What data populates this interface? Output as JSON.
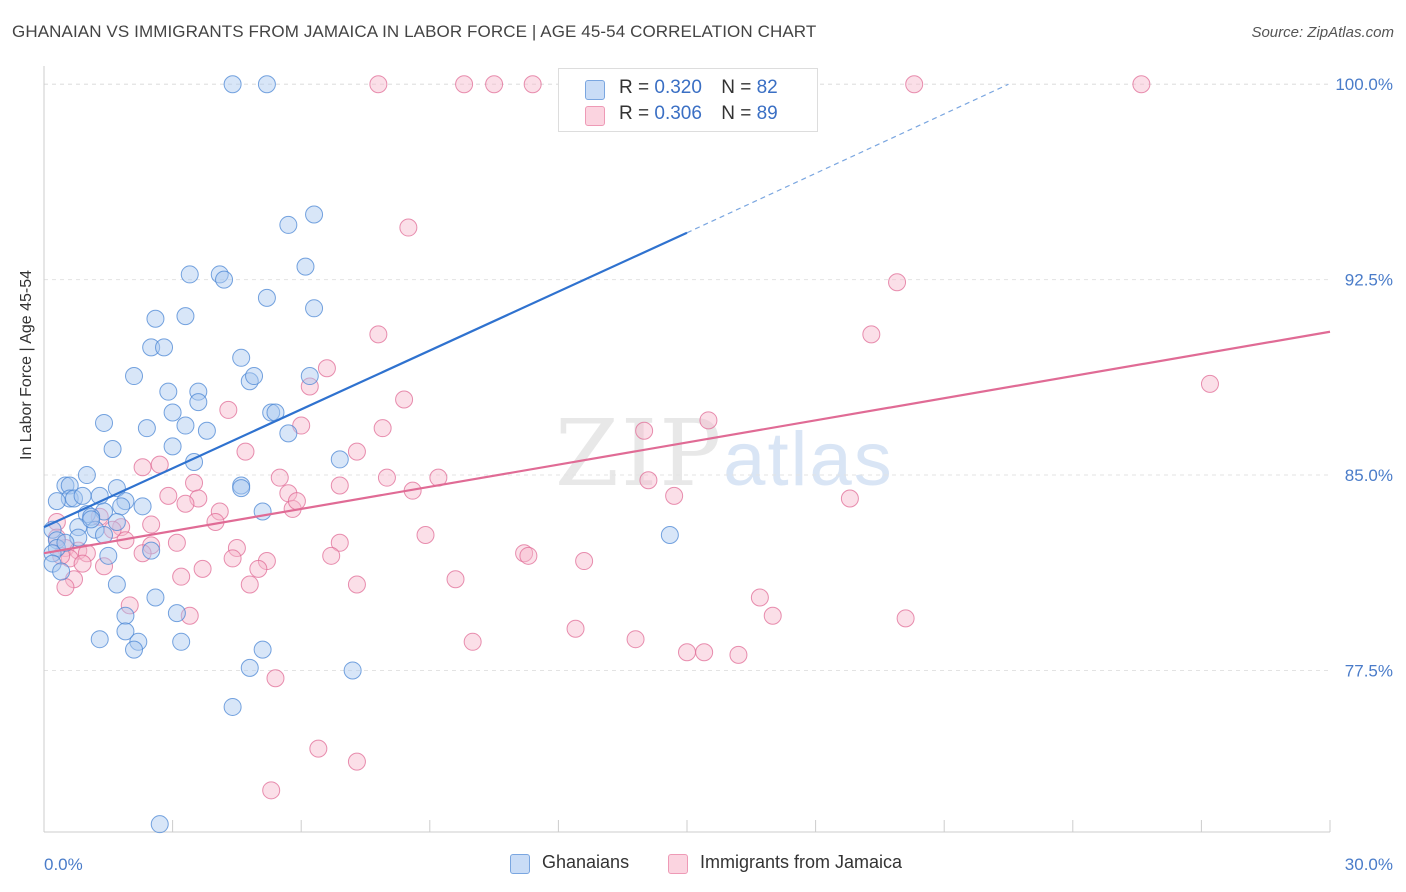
{
  "title": "GHANAIAN VS IMMIGRANTS FROM JAMAICA IN LABOR FORCE | AGE 45-54 CORRELATION CHART",
  "source": "Source: ZipAtlas.com",
  "watermark": {
    "zip": "ZIP",
    "atlas": "atlas"
  },
  "legend": {
    "rows": [
      {
        "r_label": "R = ",
        "r_value": "0.320",
        "n_label": "N = ",
        "n_value": "82",
        "color": "#a9c8f0"
      },
      {
        "r_label": "R = ",
        "r_value": "0.306",
        "n_label": "N = ",
        "n_value": "89",
        "color": "#f6b9cc"
      }
    ]
  },
  "bottom_legend": [
    {
      "label": "Ghanaians",
      "color": "#a9c8f0"
    },
    {
      "label": "Immigrants from Jamaica",
      "color": "#f6b9cc"
    }
  ],
  "chart_data": {
    "type": "scatter",
    "title": "GHANAIAN VS IMMIGRANTS FROM JAMAICA IN LABOR FORCE | AGE 45-54 CORRELATION CHART",
    "xlabel": "",
    "ylabel": "In Labor Force | Age 45-54",
    "xlim": [
      0,
      30
    ],
    "ylim": [
      71.3,
      100.7
    ],
    "x_tick_labels": [
      "0.0%",
      "30.0%"
    ],
    "y_ticks": [
      77.5,
      85.0,
      92.5,
      100.0
    ],
    "y_tick_labels": [
      "77.5%",
      "85.0%",
      "92.5%",
      "100.0%"
    ],
    "grid": true,
    "series": [
      {
        "name": "Ghanaians",
        "color": "#4a86d4",
        "fill": "#a9c8f0",
        "trend": {
          "x0": 0,
          "y0": 83.0,
          "x1": 15.0,
          "y1": 94.3,
          "dash_to_x": 22.5,
          "dash_to_y": 100.0
        },
        "points": [
          [
            4.4,
            100.0
          ],
          [
            5.2,
            100.0
          ],
          [
            6.3,
            95.0
          ],
          [
            5.7,
            94.6
          ],
          [
            6.1,
            93.0
          ],
          [
            3.4,
            92.7
          ],
          [
            4.1,
            92.7
          ],
          [
            4.2,
            92.5
          ],
          [
            5.2,
            91.8
          ],
          [
            6.3,
            91.4
          ],
          [
            3.3,
            91.1
          ],
          [
            2.6,
            91.0
          ],
          [
            2.5,
            89.9
          ],
          [
            2.8,
            89.9
          ],
          [
            4.6,
            89.5
          ],
          [
            2.1,
            88.8
          ],
          [
            4.8,
            88.6
          ],
          [
            4.9,
            88.8
          ],
          [
            6.2,
            88.8
          ],
          [
            2.9,
            88.2
          ],
          [
            3.6,
            88.2
          ],
          [
            3.6,
            87.8
          ],
          [
            3.0,
            87.4
          ],
          [
            5.3,
            87.4
          ],
          [
            5.4,
            87.4
          ],
          [
            1.4,
            87.0
          ],
          [
            3.3,
            86.9
          ],
          [
            2.4,
            86.8
          ],
          [
            3.8,
            86.7
          ],
          [
            5.7,
            86.6
          ],
          [
            3.0,
            86.1
          ],
          [
            1.6,
            86.0
          ],
          [
            3.5,
            85.5
          ],
          [
            6.9,
            85.6
          ],
          [
            1.0,
            85.0
          ],
          [
            1.7,
            84.5
          ],
          [
            4.6,
            84.6
          ],
          [
            4.6,
            84.5
          ],
          [
            0.5,
            84.6
          ],
          [
            0.6,
            84.6
          ],
          [
            1.3,
            84.2
          ],
          [
            0.6,
            84.1
          ],
          [
            0.7,
            84.1
          ],
          [
            0.3,
            84.0
          ],
          [
            1.9,
            84.0
          ],
          [
            2.3,
            83.8
          ],
          [
            1.8,
            83.8
          ],
          [
            1.4,
            83.6
          ],
          [
            5.1,
            83.6
          ],
          [
            1.0,
            83.5
          ],
          [
            1.1,
            83.4
          ],
          [
            1.7,
            83.2
          ],
          [
            1.2,
            82.9
          ],
          [
            0.8,
            83.0
          ],
          [
            0.2,
            82.9
          ],
          [
            1.4,
            82.7
          ],
          [
            0.8,
            82.6
          ],
          [
            0.3,
            82.5
          ],
          [
            2.5,
            82.1
          ],
          [
            14.6,
            82.7
          ],
          [
            0.3,
            82.2
          ],
          [
            0.2,
            82.0
          ],
          [
            1.5,
            81.9
          ],
          [
            0.2,
            81.6
          ],
          [
            0.4,
            81.3
          ],
          [
            1.7,
            80.8
          ],
          [
            2.6,
            80.3
          ],
          [
            1.9,
            79.6
          ],
          [
            3.1,
            79.7
          ],
          [
            1.9,
            79.0
          ],
          [
            2.2,
            78.6
          ],
          [
            1.3,
            78.7
          ],
          [
            2.1,
            78.3
          ],
          [
            3.2,
            78.6
          ],
          [
            5.1,
            78.3
          ],
          [
            4.8,
            77.6
          ],
          [
            7.2,
            77.5
          ],
          [
            4.4,
            76.1
          ],
          [
            2.7,
            71.6
          ],
          [
            0.5,
            82.4
          ],
          [
            1.1,
            83.3
          ],
          [
            0.9,
            84.2
          ]
        ]
      },
      {
        "name": "Immigrants from Jamaica",
        "color": "#e06b95",
        "fill": "#f6b9cc",
        "trend": {
          "x0": 0,
          "y0": 82.0,
          "x1": 30.0,
          "y1": 90.5
        },
        "points": [
          [
            7.8,
            100.0
          ],
          [
            9.8,
            100.0
          ],
          [
            10.5,
            100.0
          ],
          [
            11.4,
            100.0
          ],
          [
            20.3,
            100.0
          ],
          [
            25.6,
            100.0
          ],
          [
            8.5,
            94.5
          ],
          [
            19.9,
            92.4
          ],
          [
            7.8,
            90.4
          ],
          [
            19.3,
            90.4
          ],
          [
            6.6,
            89.1
          ],
          [
            27.2,
            88.5
          ],
          [
            6.2,
            88.4
          ],
          [
            8.4,
            87.9
          ],
          [
            4.3,
            87.5
          ],
          [
            15.5,
            87.1
          ],
          [
            6.0,
            86.9
          ],
          [
            7.9,
            86.8
          ],
          [
            14.0,
            86.7
          ],
          [
            7.3,
            85.9
          ],
          [
            4.7,
            85.9
          ],
          [
            2.3,
            85.3
          ],
          [
            2.7,
            85.4
          ],
          [
            5.5,
            84.9
          ],
          [
            8.0,
            84.9
          ],
          [
            9.2,
            84.9
          ],
          [
            14.1,
            84.8
          ],
          [
            3.5,
            84.7
          ],
          [
            6.9,
            84.6
          ],
          [
            8.6,
            84.4
          ],
          [
            5.7,
            84.3
          ],
          [
            2.9,
            84.2
          ],
          [
            14.7,
            84.2
          ],
          [
            18.8,
            84.1
          ],
          [
            3.6,
            84.1
          ],
          [
            5.8,
            83.7
          ],
          [
            3.3,
            83.9
          ],
          [
            5.9,
            84.0
          ],
          [
            4.1,
            83.6
          ],
          [
            1.3,
            83.4
          ],
          [
            0.3,
            83.2
          ],
          [
            1.8,
            83.0
          ],
          [
            8.9,
            82.7
          ],
          [
            1.9,
            82.5
          ],
          [
            6.9,
            82.4
          ],
          [
            3.1,
            82.4
          ],
          [
            4.5,
            82.2
          ],
          [
            2.5,
            82.3
          ],
          [
            2.3,
            82.0
          ],
          [
            0.5,
            82.2
          ],
          [
            0.8,
            82.1
          ],
          [
            1.0,
            82.0
          ],
          [
            11.2,
            82.0
          ],
          [
            11.3,
            81.9
          ],
          [
            6.7,
            81.9
          ],
          [
            4.4,
            81.8
          ],
          [
            5.2,
            81.7
          ],
          [
            0.6,
            81.8
          ],
          [
            0.9,
            81.6
          ],
          [
            1.4,
            81.5
          ],
          [
            3.7,
            81.4
          ],
          [
            5.0,
            81.4
          ],
          [
            12.6,
            81.7
          ],
          [
            3.2,
            81.1
          ],
          [
            0.7,
            81.0
          ],
          [
            9.6,
            81.0
          ],
          [
            4.8,
            80.8
          ],
          [
            7.3,
            80.8
          ],
          [
            0.5,
            80.7
          ],
          [
            16.7,
            80.3
          ],
          [
            2.0,
            80.0
          ],
          [
            3.4,
            79.6
          ],
          [
            17.0,
            79.6
          ],
          [
            20.1,
            79.5
          ],
          [
            12.4,
            79.1
          ],
          [
            13.8,
            78.7
          ],
          [
            10.0,
            78.6
          ],
          [
            15.0,
            78.2
          ],
          [
            15.4,
            78.2
          ],
          [
            16.2,
            78.1
          ],
          [
            5.4,
            77.2
          ],
          [
            6.4,
            74.5
          ],
          [
            7.3,
            74.0
          ],
          [
            5.3,
            72.9
          ],
          [
            0.3,
            82.6
          ],
          [
            1.6,
            82.9
          ],
          [
            2.5,
            83.1
          ],
          [
            0.4,
            81.9
          ],
          [
            4.0,
            83.2
          ]
        ]
      }
    ]
  }
}
